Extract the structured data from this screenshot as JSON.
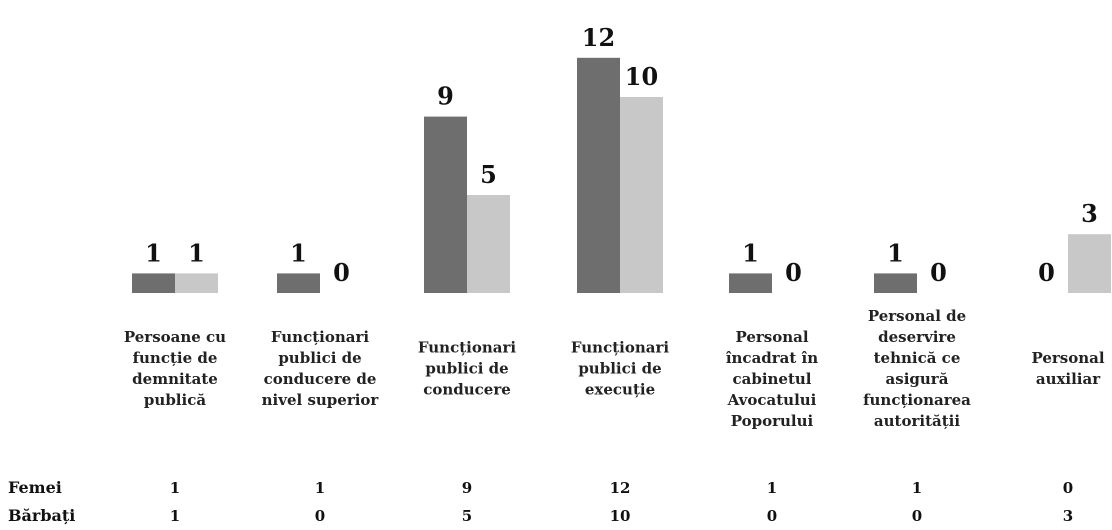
{
  "chart_data": {
    "type": "bar",
    "categories": [
      "Persoane cu funcție de demnitate publică",
      "Funcționari publici de conducere de nivel superior",
      "Funcționari publici de conducere",
      "Funcționari publici de execuție",
      "Personal încadrat în cabinetul Avocatului Poporului",
      "Personal de deservire tehnică ce asigură funcționarea autorității",
      "Personal auxiliar"
    ],
    "category_lines": [
      [
        "Persoane cu",
        "funcție de",
        "demnitate",
        "publică"
      ],
      [
        "Funcționari",
        "publici de",
        "conducere de",
        "nivel superior"
      ],
      [
        "Funcționari",
        "publici de",
        "conducere"
      ],
      [
        "Funcționari",
        "publici de",
        "execuție"
      ],
      [
        "Personal",
        "încadrat în",
        "cabinetul",
        "Avocatului",
        "Poporului"
      ],
      [
        "Personal de",
        "deservire",
        "tehnică ce",
        "asigură",
        "funcționarea",
        "autorității"
      ],
      [
        "Personal",
        "auxiliar"
      ]
    ],
    "series": [
      {
        "name": "Femei",
        "values": [
          1,
          1,
          9,
          12,
          1,
          1,
          0
        ],
        "color": "#6e6e6e"
      },
      {
        "name": "Bărbați",
        "values": [
          1,
          0,
          5,
          10,
          0,
          0,
          3
        ],
        "color": "#c8c8c8"
      }
    ],
    "ylim": [
      0,
      12
    ],
    "grid": false,
    "legend": "data-table-below",
    "data_labels": true
  }
}
